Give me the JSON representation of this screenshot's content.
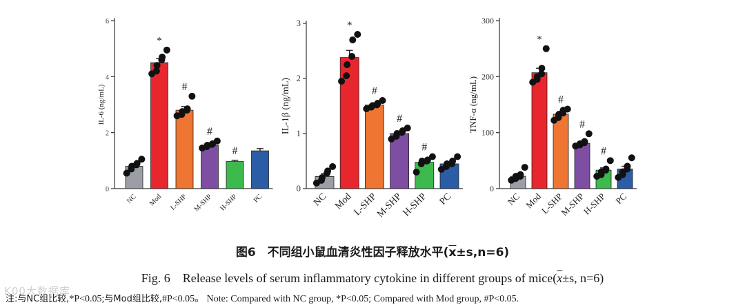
{
  "chart_data": [
    {
      "type": "bar",
      "ylabel": "IL-6 (ng/mL)",
      "ylim": [
        0,
        6
      ],
      "yticks": [
        0,
        2,
        4,
        6
      ],
      "categories": [
        "NC",
        "Mod",
        "L-SHP",
        "M-SHP",
        "H-SHP",
        "PC"
      ],
      "values": [
        0.8,
        4.5,
        2.8,
        1.55,
        0.97,
        1.35
      ],
      "errors": [
        0.07,
        0.15,
        0.13,
        0.05,
        0.04,
        0.08
      ],
      "points": [
        [
          0.55,
          0.7,
          0.8,
          0.85,
          0.9,
          1.05
        ],
        [
          4.1,
          4.2,
          4.4,
          4.6,
          4.7,
          4.95
        ],
        [
          2.6,
          2.65,
          2.75,
          2.8,
          2.85,
          3.3
        ],
        [
          1.45,
          1.5,
          1.55,
          1.58,
          1.6,
          1.7
        ],
        [],
        []
      ],
      "annotations": [
        "",
        "*",
        "#",
        "#",
        "#",
        ""
      ]
    },
    {
      "type": "bar",
      "ylabel": "IL-1β (ng/mL)",
      "ylim": [
        0,
        3
      ],
      "yticks": [
        0,
        1,
        2,
        3
      ],
      "categories": [
        "NC",
        "Mod",
        "L-SHP",
        "M-SHP",
        "H-SHP",
        "PC"
      ],
      "values": [
        0.22,
        2.38,
        1.52,
        1.0,
        0.48,
        0.45
      ],
      "errors": [
        0.05,
        0.13,
        0.04,
        0.04,
        0.04,
        0.04
      ],
      "points": [
        [
          0.1,
          0.15,
          0.2,
          0.28,
          0.32,
          0.4
        ],
        [
          1.95,
          2.05,
          2.25,
          2.4,
          2.7,
          2.8
        ],
        [
          1.45,
          1.48,
          1.5,
          1.52,
          1.55,
          1.6
        ],
        [
          0.9,
          0.95,
          1.0,
          1.02,
          1.05,
          1.1
        ],
        [
          0.3,
          0.45,
          0.5,
          0.5,
          0.52,
          0.58
        ],
        [
          0.35,
          0.4,
          0.45,
          0.45,
          0.5,
          0.58
        ]
      ],
      "annotations": [
        "",
        "*",
        "#",
        "#",
        "#",
        ""
      ]
    },
    {
      "type": "bar",
      "ylabel": "TNF-α (ng/mL)",
      "ylim": [
        0,
        300
      ],
      "yticks": [
        0,
        100,
        200,
        300
      ],
      "categories": [
        "NC",
        "Mod",
        "L-SHP",
        "M-SHP",
        "H-SHP",
        "PC"
      ],
      "values": [
        22,
        207,
        133,
        81,
        33,
        35
      ],
      "errors": [
        4,
        8,
        5,
        3,
        4,
        5
      ],
      "points": [
        [
          15,
          18,
          22,
          22,
          25,
          38
        ],
        [
          190,
          195,
          200,
          205,
          215,
          250
        ],
        [
          122,
          127,
          132,
          135,
          140,
          142
        ],
        [
          76,
          78,
          80,
          82,
          84,
          98
        ],
        [
          22,
          25,
          30,
          33,
          35,
          50
        ],
        [
          20,
          25,
          30,
          35,
          40,
          55
        ]
      ],
      "annotations": [
        "",
        "*",
        "#",
        "#",
        "#",
        ""
      ]
    }
  ],
  "colors": [
    "#9b9ea4",
    "#e8262e",
    "#ee7532",
    "#7e4ea3",
    "#3dba4e",
    "#2b5ca6"
  ],
  "caption": {
    "cn_prefix": "图6　不同组小鼠血清炎性因子释放水平(",
    "cn_x": "x",
    "cn_suffix": "±s,n=6)",
    "en_prefix": "Fig. 6　Release levels of serum inflammatory cytokine in different groups of mice(",
    "en_x": "x",
    "en_suffix": "±s, n=6)"
  },
  "note": {
    "cn": "注:与NC组比较,",
    "star": "*P<0.05;",
    "cn2": "与Mod组比较,",
    "hash": "#P<0.05。",
    "en": "Note: Compared with NC group, *P<0.05; Compared with Mod group, #P<0.05."
  },
  "watermark": "K00大数据库"
}
